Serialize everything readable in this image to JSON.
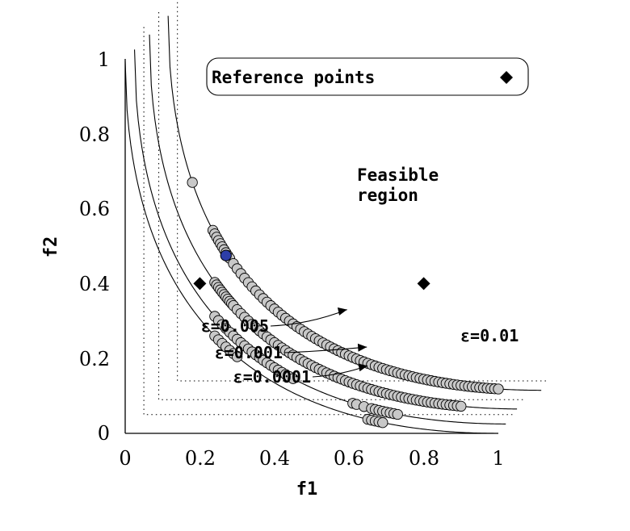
{
  "chart_data": {
    "type": "scatter",
    "title": "",
    "xlabel": "f1",
    "ylabel": "f2",
    "xlim": [
      0,
      1
    ],
    "ylim": [
      0,
      1
    ],
    "x_ticks": [
      "0",
      "0.2",
      "0.4",
      "0.6",
      "0.8",
      "1"
    ],
    "y_ticks": [
      "0",
      "0.2",
      "0.4",
      "0.6",
      "0.8",
      "1"
    ],
    "legend": {
      "label": "Reference points",
      "position": "top"
    },
    "region_label": "Feasible region",
    "reference_points": [
      {
        "x": 0.2,
        "y": 0.4
      },
      {
        "x": 0.8,
        "y": 0.4
      }
    ],
    "series": [
      {
        "name": "ε=0.0001",
        "offset": 0.0,
        "x": [
          0.24,
          0.25,
          0.26,
          0.27,
          0.28,
          0.29,
          0.3,
          0.65,
          0.66,
          0.67,
          0.68,
          0.69
        ],
        "label_at": [
          0.667,
          0.187
        ]
      },
      {
        "name": "ε=0.001",
        "offset": 0.025,
        "x": [
          0.24,
          0.25,
          0.26,
          0.27,
          0.28,
          0.29,
          0.3,
          0.31,
          0.32,
          0.33,
          0.34,
          0.35,
          0.36,
          0.37,
          0.38,
          0.39,
          0.4,
          0.41,
          0.42,
          0.43,
          0.44,
          0.45,
          0.61,
          0.62,
          0.64,
          0.66,
          0.67,
          0.68,
          0.69,
          0.7,
          0.71,
          0.72,
          0.73
        ],
        "label_at": [
          0.665,
          0.237
        ]
      },
      {
        "name": "ε=0.005",
        "offset": 0.065,
        "x": [
          0.24,
          0.245,
          0.25,
          0.255,
          0.26,
          0.265,
          0.27,
          0.275,
          0.28,
          0.285,
          0.29,
          0.3,
          0.31,
          0.32,
          0.33,
          0.34,
          0.35,
          0.36,
          0.37,
          0.38,
          0.39,
          0.4,
          0.41,
          0.42,
          0.43,
          0.44,
          0.45,
          0.46,
          0.47,
          0.48,
          0.49,
          0.5,
          0.51,
          0.52,
          0.53,
          0.54,
          0.55,
          0.56,
          0.57,
          0.58,
          0.59,
          0.6,
          0.61,
          0.62,
          0.63,
          0.64,
          0.65,
          0.66,
          0.67,
          0.68,
          0.69,
          0.7,
          0.71,
          0.72,
          0.73,
          0.74,
          0.75,
          0.76,
          0.77,
          0.78,
          0.79,
          0.8,
          0.81,
          0.82,
          0.83,
          0.84,
          0.85,
          0.86,
          0.87,
          0.88,
          0.89,
          0.9
        ],
        "label_at": [
          0.612,
          0.337
        ]
      },
      {
        "name": "ε=0.01",
        "offset": 0.115,
        "x": [
          0.18,
          0.235,
          0.24,
          0.245,
          0.25,
          0.255,
          0.26,
          0.265,
          0.27,
          0.275,
          0.28,
          0.29,
          0.3,
          0.31,
          0.32,
          0.33,
          0.34,
          0.35,
          0.36,
          0.37,
          0.38,
          0.39,
          0.4,
          0.41,
          0.42,
          0.43,
          0.44,
          0.45,
          0.46,
          0.47,
          0.48,
          0.49,
          0.5,
          0.51,
          0.52,
          0.53,
          0.54,
          0.55,
          0.56,
          0.57,
          0.58,
          0.59,
          0.6,
          0.61,
          0.62,
          0.63,
          0.64,
          0.65,
          0.66,
          0.67,
          0.68,
          0.69,
          0.7,
          0.71,
          0.72,
          0.73,
          0.74,
          0.75,
          0.76,
          0.77,
          0.78,
          0.79,
          0.8,
          0.81,
          0.82,
          0.83,
          0.84,
          0.85,
          0.86,
          0.87,
          0.88,
          0.89,
          0.9,
          0.91,
          0.92,
          0.93,
          0.94,
          0.95,
          0.96,
          0.97,
          0.98,
          0.99,
          1.0
        ],
        "label_at": [
          0.895,
          0.27
        ]
      }
    ],
    "highlight_point": {
      "x": 0.27,
      "y": 0.475,
      "color": "#2d3ea8"
    },
    "grid": false
  }
}
